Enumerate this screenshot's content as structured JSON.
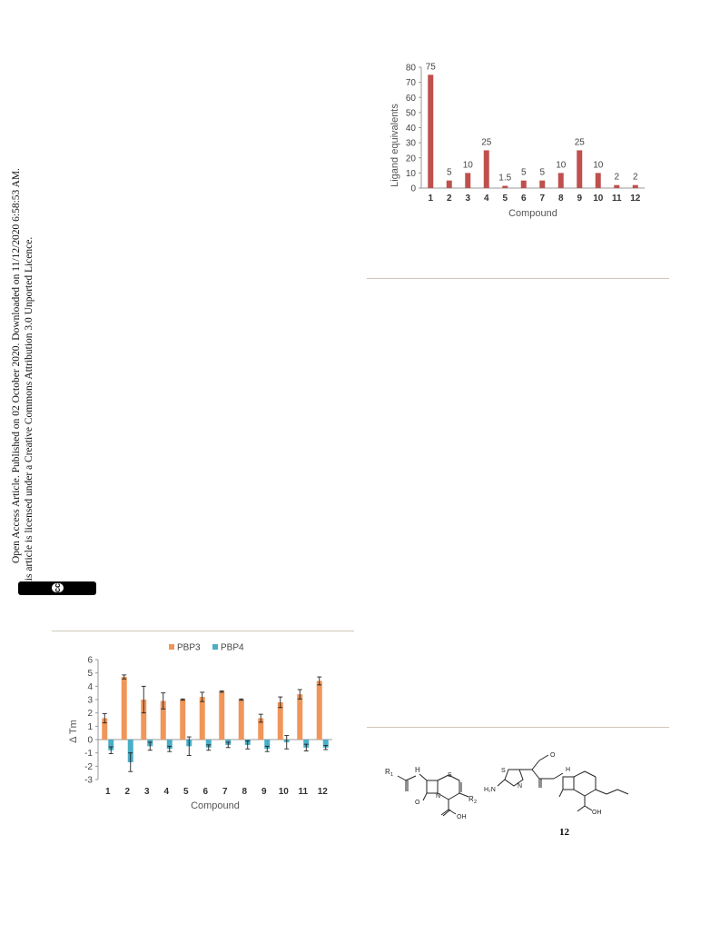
{
  "license_sidebar": {
    "line1": "Open Access Article. Published on 02 October 2020. Downloaded on 11/12/2020 6:58:53 AM.",
    "line2": "This article is licensed under a Creative Commons Attribution 3.0 Unported Licence.",
    "cc_badge": "cc",
    "by_badge": "BY"
  },
  "chart_data": [
    {
      "type": "bar",
      "ylabel": "Ligand equivalents",
      "xlabel": "Compound",
      "categories": [
        "1",
        "2",
        "3",
        "4",
        "5",
        "6",
        "7",
        "8",
        "9",
        "10",
        "11",
        "12"
      ],
      "values": [
        75,
        5,
        10,
        25,
        1.5,
        5,
        5,
        10,
        25,
        10,
        2,
        2
      ],
      "data_labels": [
        "75",
        "5",
        "10",
        "25",
        "1.5",
        "5",
        "5",
        "10",
        "25",
        "10",
        "2",
        "2"
      ],
      "ylim": [
        0,
        80
      ],
      "yticks": [
        "0",
        "10",
        "20",
        "30",
        "40",
        "50",
        "60",
        "70",
        "80"
      ],
      "color": "#c0504d",
      "grid": false
    },
    {
      "type": "bar",
      "ylabel": "Δ Tm",
      "xlabel": "Compound",
      "categories": [
        "1",
        "2",
        "3",
        "4",
        "5",
        "6",
        "7",
        "8",
        "9",
        "10",
        "11",
        "12"
      ],
      "series": [
        {
          "name": "PBP3",
          "color": "#f0965a",
          "values": [
            1.6,
            4.7,
            3.0,
            2.9,
            3.0,
            3.2,
            3.6,
            3.0,
            1.6,
            2.8,
            3.4,
            4.4
          ],
          "errors": [
            0.35,
            0.15,
            1.0,
            0.6,
            0.05,
            0.35,
            0.05,
            0.05,
            0.3,
            0.4,
            0.35,
            0.3
          ]
        },
        {
          "name": "PBP4",
          "color": "#4aaec6",
          "values": [
            -0.8,
            -1.7,
            -0.5,
            -0.7,
            -0.5,
            -0.6,
            -0.4,
            -0.4,
            -0.7,
            -0.2,
            -0.6,
            -0.6
          ],
          "errors": [
            0.25,
            0.7,
            0.3,
            0.2,
            0.7,
            0.2,
            0.2,
            0.3,
            0.2,
            0.5,
            0.25,
            0.15
          ]
        }
      ],
      "ylim": [
        -3,
        6
      ],
      "yticks": [
        "-3",
        "-2",
        "-1",
        "0",
        "1",
        "2",
        "3",
        "4",
        "5",
        "6"
      ],
      "legend": "top-center",
      "grid": false
    }
  ],
  "structures": {
    "left": {
      "r1": "R",
      "r1_sub": "1",
      "r2": "R",
      "r2_sub": "2",
      "nh": "H",
      "n_label": "N",
      "s_label": "S",
      "o_label": "O",
      "oh_label": "OH",
      "numbers": [
        "7",
        "6",
        "5",
        "4",
        "8",
        "1",
        "2",
        "3"
      ]
    },
    "right": {
      "label": "12",
      "s_label": "S",
      "n_label": "N",
      "h2n_label": "H₂N",
      "o_label": "O",
      "oh_label": "OH",
      "nh": "H"
    }
  }
}
